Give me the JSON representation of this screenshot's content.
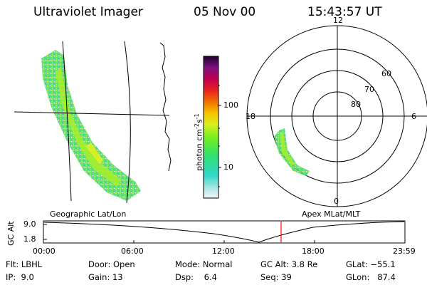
{
  "header": {
    "instrument": "Ultraviolet Imager",
    "date": "05 Nov 00",
    "time": "15:43:57 UT"
  },
  "colorbar": {
    "unit_label": "photon cm",
    "unit_exp1": "-2",
    "unit_mid": "s",
    "unit_exp2": "-1",
    "tick_100": "100",
    "tick_10": "10"
  },
  "geo_map": {
    "caption": "Geographic Lat/Lon"
  },
  "polar_map": {
    "caption": "Apex MLat/MLT",
    "mlt_labels": {
      "top": "12",
      "left": "18",
      "right": "6",
      "bottom": "0"
    },
    "lat_labels": [
      "60",
      "70",
      "80"
    ]
  },
  "altitude_plot": {
    "ylabel": "GC Alt",
    "y_top": "9.0",
    "y_bottom": "1.8",
    "x_ticks": [
      "00:00",
      "06:00",
      "12:00",
      "18:00",
      "23:59"
    ]
  },
  "info": {
    "flt_label": "Flt:",
    "flt_value": "LBHL",
    "ip_label": "IP:",
    "ip_value": "9.0",
    "door_label": "Door:",
    "door_value": "Open",
    "gain_label": "Gain:",
    "gain_value": "13",
    "mode_label": "Mode:",
    "mode_value": "Normal",
    "dsp_label": "Dsp:",
    "dsp_value": "6.4",
    "gcalt_label": "GC Alt:",
    "gcalt_value": "3.8 Re",
    "seq_label": "Seq:",
    "seq_value": "39",
    "glat_label": "GLat:",
    "glat_value": "−55.1",
    "glon_label": "GLon:",
    "glon_value": "87.4"
  },
  "colors": {
    "current_time_marker": "#ff0000"
  }
}
